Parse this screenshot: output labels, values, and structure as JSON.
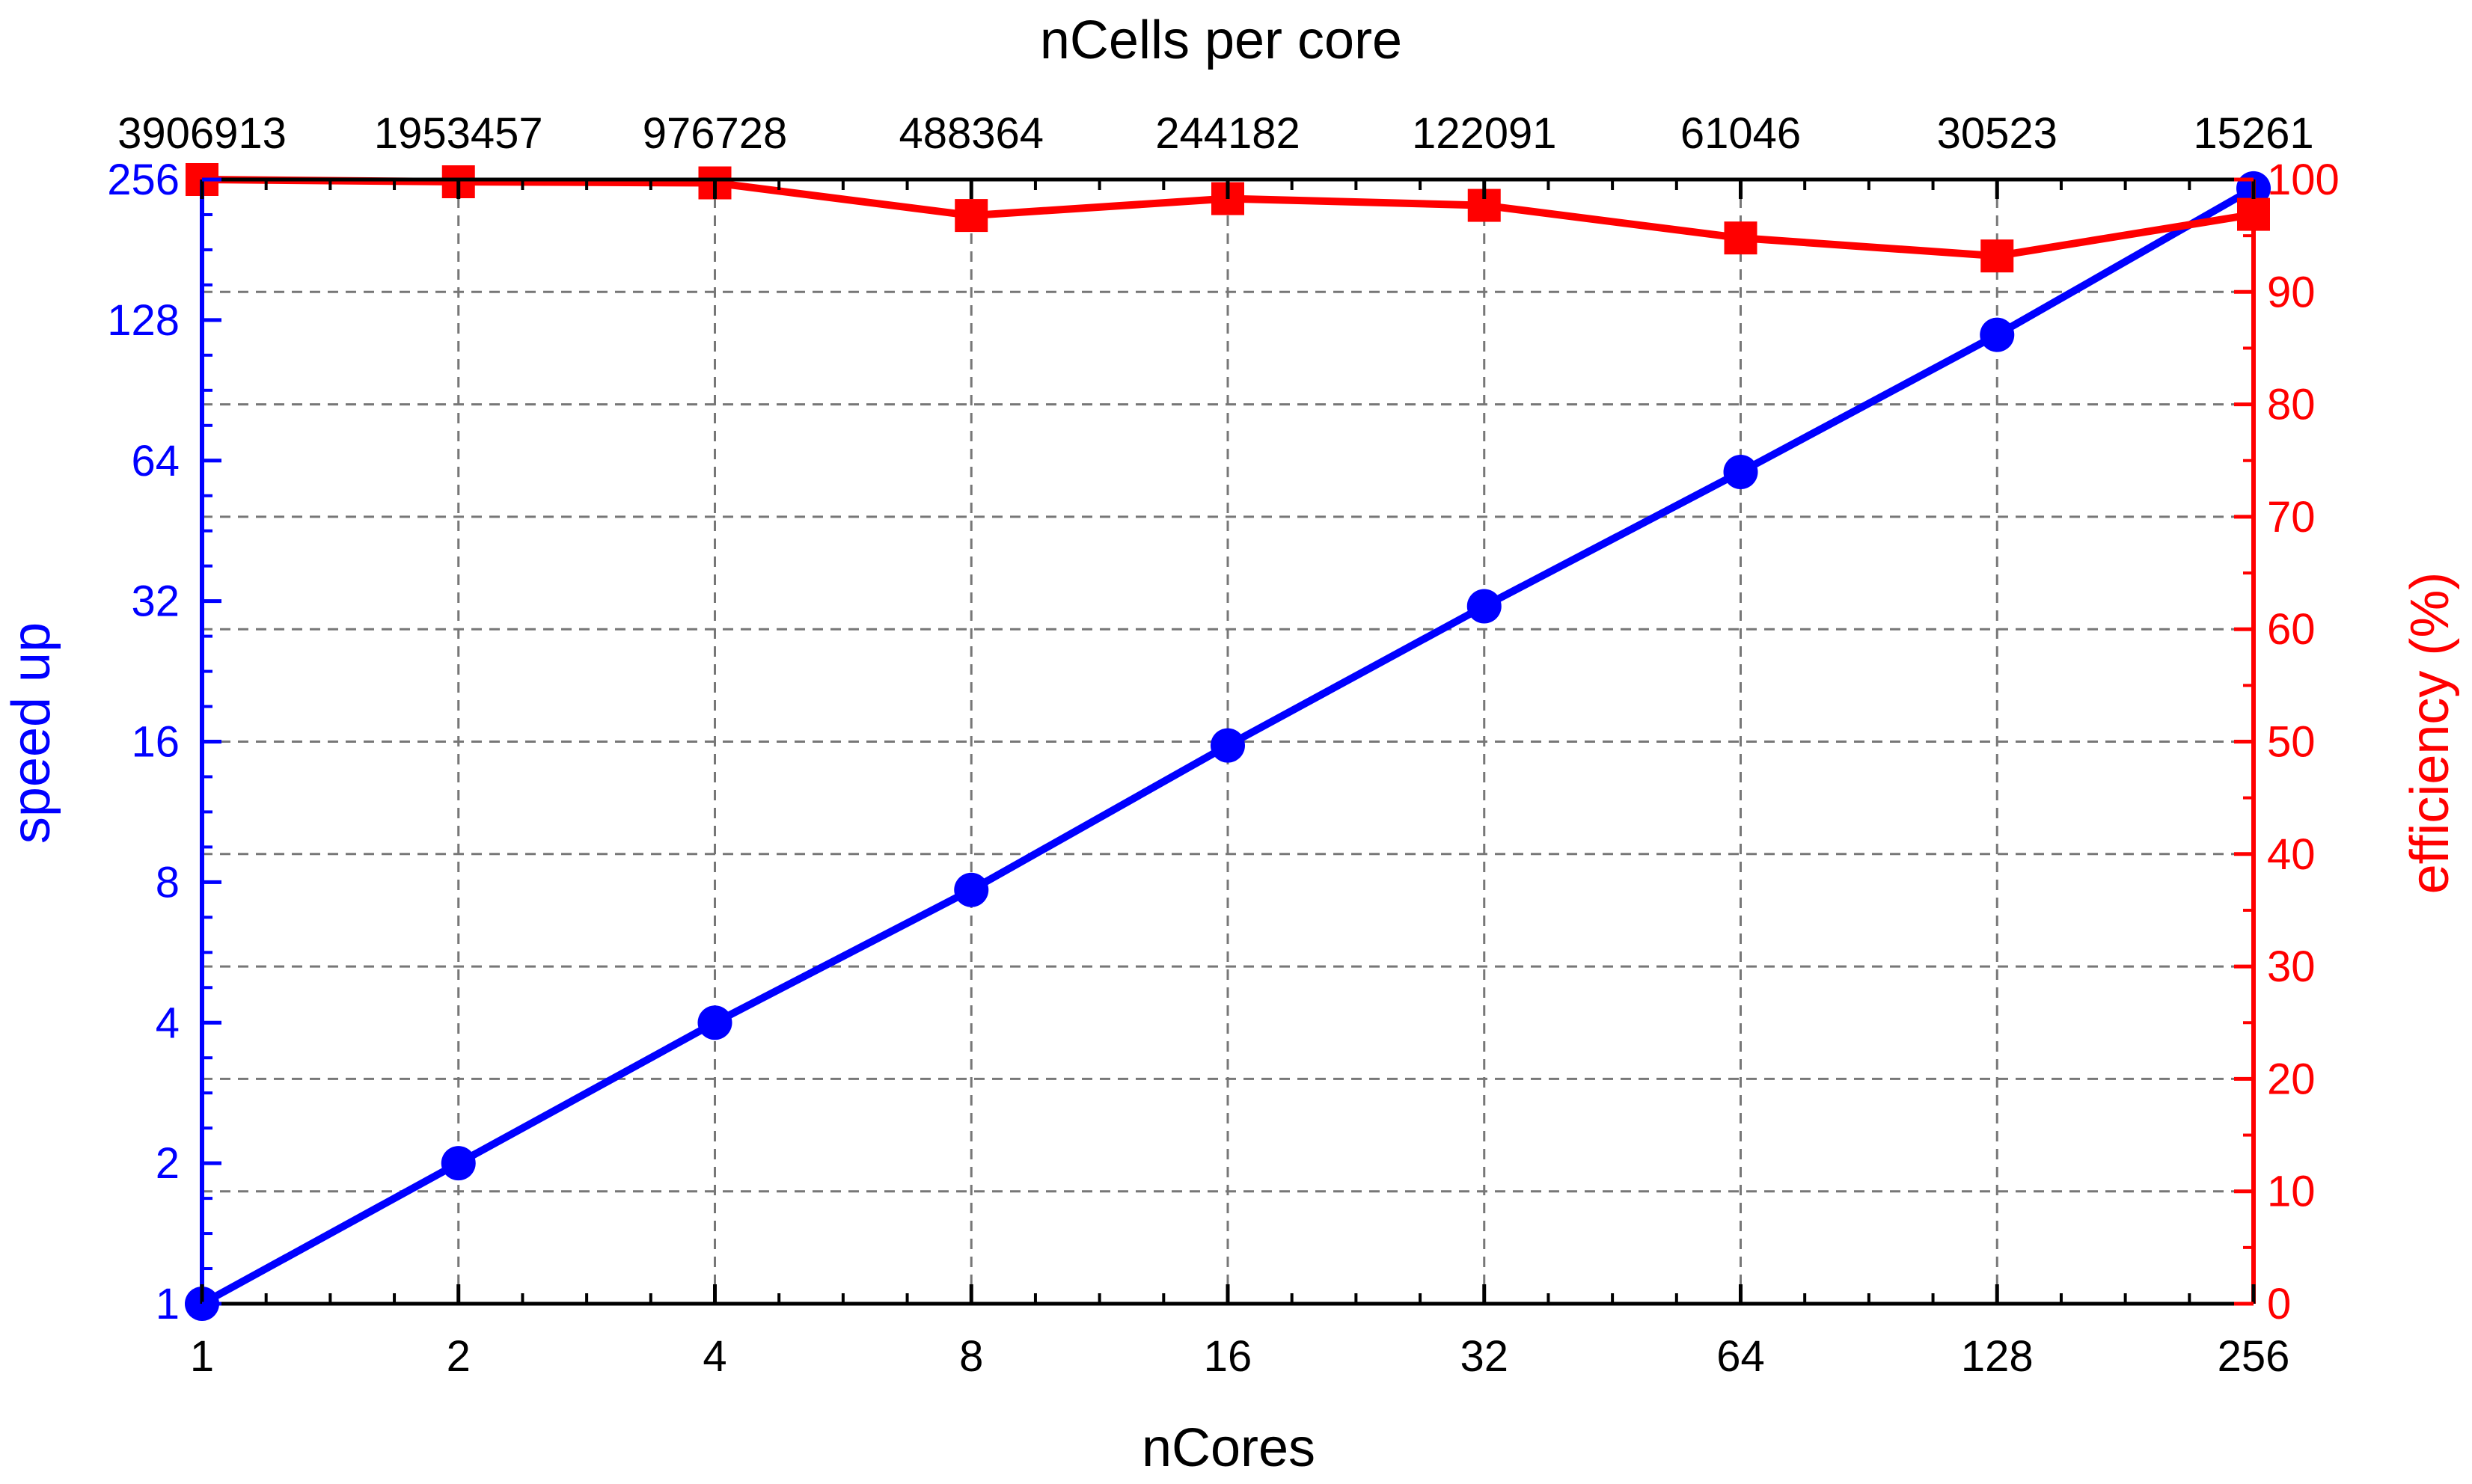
{
  "chart_data": {
    "type": "line",
    "xlabel": "nCores",
    "top_axis_label": "nCells per core",
    "ylabel_left": "speed up",
    "ylabel_right": "efficiency (%)",
    "x_scale": "log2",
    "x_ticks": [
      1,
      2,
      4,
      8,
      16,
      32,
      64,
      128,
      256
    ],
    "top_ticks": [
      "3906913",
      "1953457",
      "976728",
      "488364",
      "244182",
      "122091",
      "61046",
      "30523",
      "15261"
    ],
    "y_left_scale": "log2",
    "y_left_ticks": [
      1,
      2,
      4,
      8,
      16,
      32,
      64,
      128,
      256
    ],
    "y_left_range": [
      1,
      256
    ],
    "y_right_ticks": [
      0,
      10,
      20,
      30,
      40,
      50,
      60,
      70,
      80,
      90,
      100
    ],
    "y_right_range": [
      0,
      100
    ],
    "grid": true,
    "series": [
      {
        "axis": "left",
        "marker": "circle",
        "color": "#0000ff",
        "x": [
          1,
          2,
          4,
          8,
          16,
          32,
          64,
          128,
          256
        ],
        "values": [
          1,
          2,
          4,
          7.7,
          15.7,
          31.2,
          60.5,
          119,
          245
        ]
      },
      {
        "axis": "right",
        "marker": "square",
        "color": "#ff0000",
        "x": [
          1,
          2,
          4,
          8,
          16,
          32,
          64,
          128,
          256
        ],
        "values": [
          100,
          99.8,
          99.7,
          96.8,
          98.3,
          97.7,
          94.8,
          93.2,
          96.9
        ]
      }
    ]
  },
  "colors": {
    "left_axis": "#0000ff",
    "right_axis": "#ff0000",
    "axis": "#000000",
    "grid": "#777777"
  }
}
